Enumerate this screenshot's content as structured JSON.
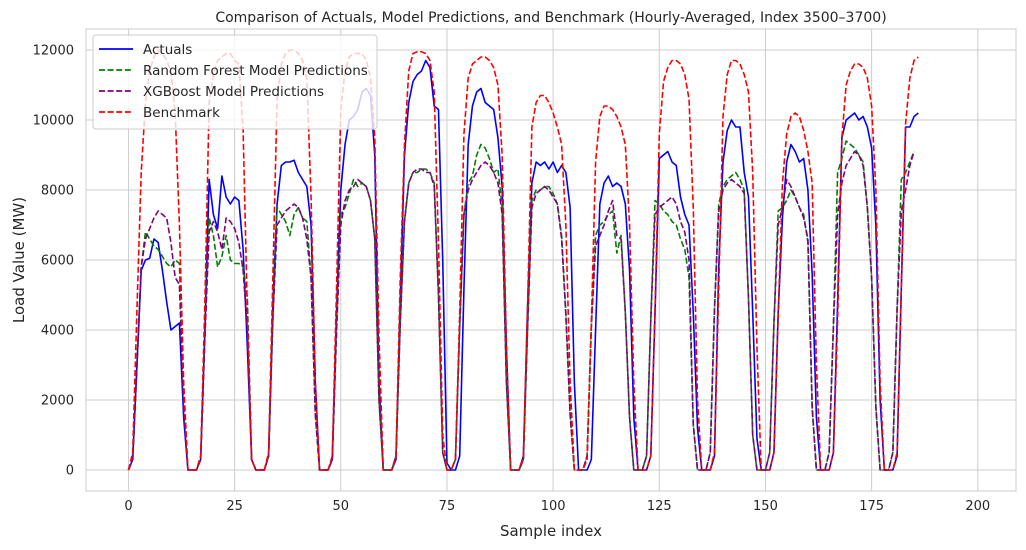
{
  "chart_data": {
    "type": "line",
    "title": "Comparison of Actuals, Model Predictions, and Benchmark (Hourly-Averaged, Index 3500–3700)",
    "xlabel": "Sample index",
    "ylabel": "Load Value (MW)",
    "xlim": [
      -10,
      209
    ],
    "ylim": [
      -600,
      12600
    ],
    "xticks": [
      0,
      25,
      50,
      75,
      100,
      125,
      150,
      175,
      200
    ],
    "yticks": [
      0,
      2000,
      4000,
      6000,
      8000,
      10000,
      12000
    ],
    "grid": true,
    "legend_position": "top-left",
    "series": [
      {
        "name": "Actuals",
        "color": "#0000ff",
        "dash": "solid",
        "y": [
          0,
          300,
          3000,
          5700,
          6000,
          6050,
          6600,
          6500,
          5700,
          4800,
          4000,
          4100,
          4200,
          1500,
          0,
          0,
          0,
          300,
          4000,
          8300,
          7300,
          6900,
          8400,
          7800,
          7600,
          7800,
          7700,
          6300,
          3500,
          300,
          0,
          0,
          0,
          400,
          4700,
          7600,
          8700,
          8800,
          8800,
          8850,
          8500,
          8300,
          8100,
          7000,
          2500,
          0,
          0,
          0,
          300,
          4500,
          8000,
          9300,
          10000,
          10100,
          10300,
          10800,
          10900,
          10700,
          9000,
          2500,
          0,
          0,
          0,
          300,
          4800,
          9000,
          10500,
          11100,
          11300,
          11400,
          11700,
          11500,
          10400,
          10300,
          6000,
          200,
          0,
          0,
          400,
          5200,
          9300,
          10400,
          10800,
          10900,
          10500,
          10400,
          10300,
          9500,
          8100,
          3500,
          0,
          0,
          0,
          400,
          4700,
          8200,
          8800,
          8700,
          8800,
          8600,
          8800,
          8500,
          8700,
          8500,
          7500,
          2500,
          0,
          0,
          0,
          300,
          4000,
          7600,
          8200,
          8400,
          8100,
          8200,
          8100,
          7600,
          5700,
          1500,
          0,
          0,
          0,
          400,
          4500,
          8900,
          9000,
          9100,
          8800,
          8700,
          7800,
          7300,
          7000,
          4500,
          1200,
          0,
          0,
          0,
          400,
          5800,
          8800,
          9700,
          10000,
          9800,
          9800,
          8500,
          7800,
          4500,
          900,
          0,
          0,
          0,
          500,
          4500,
          7200,
          8800,
          9300,
          9100,
          8800,
          8900,
          8000,
          5600,
          1500,
          0,
          0,
          0,
          500,
          4800,
          9500,
          10000,
          10100,
          10200,
          10000,
          10100,
          9800,
          9200,
          7000,
          2000,
          0,
          0,
          0,
          400,
          5200,
          9800,
          9800,
          10100,
          10200
        ]
      },
      {
        "name": "Random Forest Model Predictions",
        "color": "#008000",
        "dash": "dashed",
        "y": [
          0,
          300,
          3000,
          5800,
          6800,
          6600,
          6400,
          6300,
          6100,
          5900,
          5800,
          6000,
          5900,
          2000,
          0,
          0,
          0,
          300,
          3800,
          7200,
          6700,
          5800,
          6100,
          6700,
          6000,
          5900,
          5900,
          5800,
          4900,
          300,
          0,
          0,
          0,
          400,
          4300,
          7500,
          7300,
          7100,
          6700,
          7300,
          7500,
          7200,
          7100,
          5500,
          1600,
          0,
          0,
          0,
          300,
          4000,
          7300,
          7500,
          7900,
          8300,
          8100,
          8200,
          8100,
          7700,
          6600,
          2000,
          0,
          0,
          0,
          400,
          4200,
          7100,
          8200,
          8500,
          8500,
          8600,
          8600,
          8500,
          8200,
          5000,
          500,
          0,
          0,
          300,
          4100,
          7300,
          8200,
          8400,
          9000,
          9300,
          9200,
          8900,
          8500,
          8600,
          7500,
          2500,
          0,
          0,
          0,
          300,
          4100,
          7700,
          8000,
          8000,
          8100,
          8100,
          7900,
          7600,
          6700,
          4500,
          1600,
          0,
          0,
          0,
          400,
          4100,
          6700,
          7000,
          7100,
          7300,
          7400,
          6200,
          6700,
          4500,
          1500,
          0,
          0,
          0,
          400,
          4300,
          7700,
          7600,
          7400,
          7300,
          7100,
          7000,
          6600,
          6300,
          5500,
          1300,
          0,
          0,
          0,
          500,
          4600,
          7600,
          8100,
          8300,
          8400,
          8500,
          8300,
          8000,
          4900,
          1000,
          0,
          0,
          0,
          500,
          4200,
          7400,
          7500,
          7700,
          8000,
          7800,
          7500,
          7300,
          6500,
          1800,
          0,
          0,
          0,
          500,
          4100,
          8500,
          8900,
          9400,
          9300,
          9200,
          9000,
          8800,
          7500,
          5500,
          1800,
          0,
          0,
          0,
          500,
          4600,
          8300,
          8500,
          8800,
          9100
        ]
      },
      {
        "name": "XGBoost Model Predictions",
        "color": "#800080",
        "dash": "dashed",
        "y": [
          0,
          300,
          3000,
          5800,
          6600,
          6900,
          7200,
          7400,
          7300,
          7200,
          6500,
          5500,
          5300,
          1800,
          0,
          0,
          0,
          300,
          3800,
          6800,
          7100,
          6800,
          6300,
          7200,
          7100,
          6900,
          6500,
          5700,
          4000,
          300,
          0,
          0,
          0,
          400,
          4300,
          7000,
          7200,
          7400,
          7500,
          7600,
          7500,
          7200,
          6600,
          5500,
          1600,
          0,
          0,
          0,
          300,
          4000,
          7000,
          7700,
          8000,
          8100,
          8300,
          8200,
          8100,
          7700,
          6600,
          2000,
          0,
          0,
          0,
          400,
          4200,
          7100,
          8200,
          8500,
          8600,
          8600,
          8500,
          8500,
          8100,
          5000,
          500,
          0,
          0,
          300,
          4100,
          7300,
          8000,
          8300,
          8500,
          8700,
          8800,
          8700,
          8500,
          8200,
          7300,
          2500,
          0,
          0,
          0,
          300,
          4100,
          7500,
          7900,
          8000,
          8100,
          8000,
          7800,
          7600,
          6600,
          4400,
          1600,
          0,
          0,
          0,
          400,
          4100,
          6400,
          6700,
          7000,
          7400,
          7700,
          6700,
          6600,
          4500,
          1500,
          0,
          0,
          0,
          400,
          4300,
          7300,
          7500,
          7600,
          7700,
          7800,
          7600,
          7100,
          6800,
          6000,
          1300,
          0,
          0,
          0,
          500,
          4600,
          7400,
          8000,
          8200,
          8300,
          8200,
          8100,
          7900,
          4900,
          1000,
          0,
          0,
          0,
          500,
          4200,
          7000,
          7500,
          8300,
          8100,
          7800,
          7500,
          7200,
          6600,
          1800,
          0,
          0,
          0,
          500,
          4100,
          7300,
          8200,
          8700,
          8900,
          9100,
          9000,
          8700,
          7500,
          5500,
          1800,
          0,
          0,
          0,
          500,
          4600,
          7400,
          8000,
          8700,
          9100
        ]
      },
      {
        "name": "Benchmark",
        "color": "#ff0000",
        "dash": "dashed",
        "y": [
          0,
          500,
          4600,
          8500,
          10500,
          11400,
          11800,
          12000,
          11900,
          11700,
          11400,
          10200,
          7000,
          2500,
          0,
          0,
          0,
          400,
          4800,
          10500,
          11300,
          11700,
          11800,
          11900,
          11900,
          11700,
          11600,
          9700,
          4500,
          300,
          0,
          0,
          0,
          500,
          5500,
          10600,
          11600,
          11900,
          12000,
          12000,
          11900,
          11700,
          11200,
          7800,
          2500,
          0,
          0,
          0,
          400,
          5200,
          10300,
          11400,
          11800,
          11900,
          11900,
          11900,
          11700,
          11200,
          9500,
          3800,
          0,
          0,
          0,
          400,
          5500,
          9300,
          11400,
          11900,
          11950,
          11950,
          11900,
          11700,
          10800,
          6500,
          1000,
          0,
          0,
          300,
          4500,
          9600,
          11200,
          11600,
          11700,
          11800,
          11800,
          11700,
          11500,
          11000,
          9000,
          3500,
          0,
          0,
          0,
          400,
          4800,
          9800,
          10500,
          10700,
          10700,
          10500,
          10200,
          9800,
          9300,
          7000,
          2500,
          0,
          0,
          0,
          300,
          4200,
          8800,
          10100,
          10400,
          10400,
          10300,
          10100,
          9800,
          9300,
          7000,
          2500,
          0,
          0,
          0,
          400,
          4600,
          9600,
          11100,
          11500,
          11700,
          11700,
          11600,
          11300,
          10600,
          7500,
          2000,
          0,
          0,
          0,
          500,
          5200,
          10100,
          11300,
          11700,
          11700,
          11600,
          11300,
          10800,
          8500,
          3500,
          0,
          0,
          0,
          500,
          4400,
          8200,
          9600,
          10100,
          10200,
          10100,
          9700,
          9100,
          8200,
          3000,
          0,
          0,
          0,
          500,
          4300,
          9500,
          11000,
          11400,
          11600,
          11600,
          11500,
          11200,
          10400,
          8000,
          2500,
          0,
          0,
          0,
          500,
          5300,
          9900,
          11200,
          11700,
          11800
        ]
      }
    ]
  }
}
